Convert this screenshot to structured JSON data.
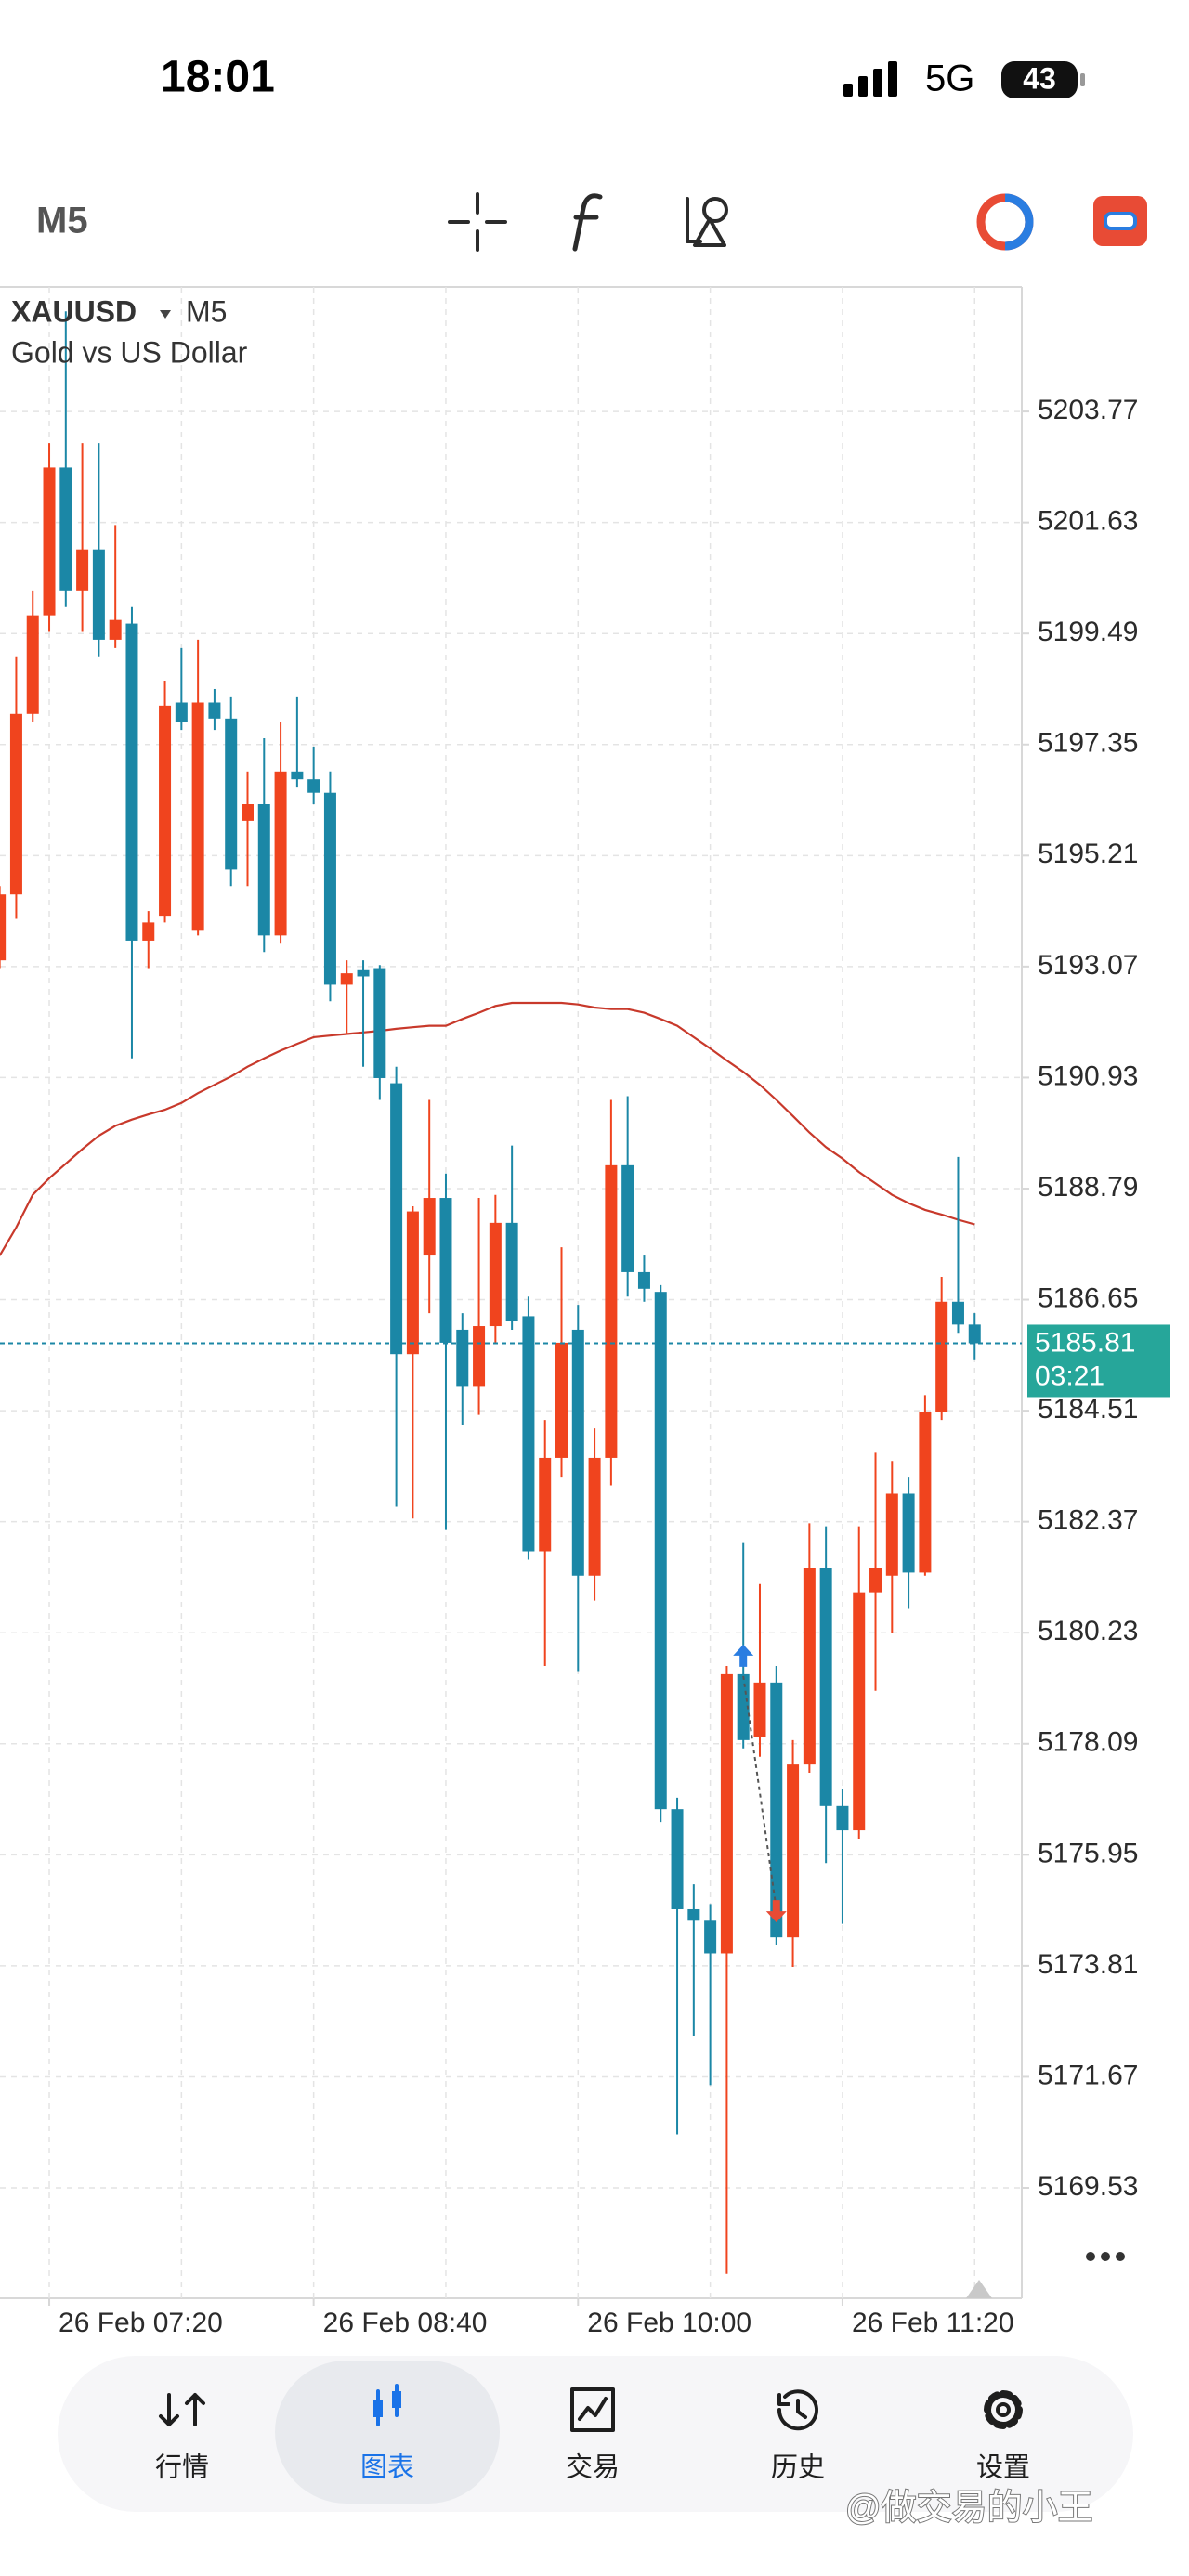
{
  "status_bar": {
    "time": "18:01",
    "network": "5G",
    "battery": "43"
  },
  "toolbar": {
    "timeframe": "M5"
  },
  "chart_data": {
    "type": "candlestick",
    "symbol": "XAUUSD",
    "timeframe": "M5",
    "description": "Gold vs US Dollar",
    "categories": [
      null,
      null,
      null,
      "26 Feb 07:20",
      null,
      null,
      null,
      null,
      null,
      null,
      null,
      null,
      null,
      null,
      null,
      null,
      null,
      null,
      null,
      "26 Feb 08:40",
      null,
      null,
      null,
      null,
      null,
      null,
      null,
      null,
      null,
      null,
      null,
      null,
      null,
      null,
      null,
      "26 Feb 10:00",
      null,
      null,
      null,
      null,
      null,
      null,
      null,
      null,
      null,
      null,
      null,
      null,
      null,
      null,
      null,
      "26 Feb 11:20",
      null,
      null,
      null,
      null,
      null,
      null,
      null,
      null
    ],
    "open": [
      5193.19,
      5194.46,
      5197.94,
      5199.84,
      5202.69,
      5200.32,
      5201.11,
      5199.37,
      5199.68,
      5193.57,
      5194.05,
      5198.16,
      5193.76,
      5198.16,
      5197.85,
      5195.88,
      5196.2,
      5193.67,
      5196.83,
      5196.68,
      5196.42,
      5192.72,
      5193.0,
      5193.04,
      5190.82,
      5185.6,
      5187.5,
      5188.61,
      5186.07,
      5184.97,
      5186.14,
      5188.13,
      5186.33,
      5181.8,
      5183.6,
      5186.07,
      5181.33,
      5183.6,
      5189.24,
      5187.18,
      5186.8,
      5176.83,
      5174.9,
      5174.68,
      5174.05,
      5179.43,
      5178.22,
      5179.27,
      5174.36,
      5177.69,
      5181.48,
      5176.89,
      5176.42,
      5181.01,
      5181.33,
      5182.91,
      5181.39,
      5184.49,
      5186.61,
      5186.17
    ],
    "high": [
      5194.62,
      5199.05,
      5200.32,
      5203.16,
      5205.7,
      5203.16,
      5203.16,
      5201.58,
      5200.0,
      5194.14,
      5198.58,
      5199.21,
      5199.37,
      5198.42,
      5198.26,
      5196.83,
      5197.47,
      5197.78,
      5198.26,
      5197.31,
      5196.83,
      5193.19,
      5193.19,
      5193.1,
      5191.14,
      5188.45,
      5190.5,
      5189.08,
      5186.39,
      5188.61,
      5188.67,
      5189.62,
      5186.71,
      5184.33,
      5187.66,
      5186.55,
      5184.17,
      5190.5,
      5190.57,
      5187.5,
      5186.93,
      5177.05,
      5175.38,
      5175.0,
      5179.59,
      5181.96,
      5181.17,
      5179.59,
      5178.16,
      5182.34,
      5182.28,
      5177.21,
      5182.28,
      5183.7,
      5183.54,
      5183.22,
      5184.81,
      5187.09,
      5189.4,
      5186.39
    ],
    "low": [
      5193.04,
      5193.99,
      5197.78,
      5199.52,
      5200.0,
      5199.52,
      5199.05,
      5199.21,
      5191.3,
      5193.04,
      5193.92,
      5197.63,
      5193.67,
      5197.63,
      5194.62,
      5194.62,
      5193.35,
      5193.51,
      5196.52,
      5196.2,
      5192.4,
      5191.77,
      5191.14,
      5190.5,
      5182.66,
      5182.43,
      5186.39,
      5182.21,
      5184.24,
      5184.43,
      5185.82,
      5186.07,
      5181.64,
      5179.59,
      5183.22,
      5179.49,
      5180.85,
      5183.07,
      5186.71,
      5186.61,
      5176.58,
      5170.56,
      5172.46,
      5171.51,
      5167.87,
      5178.0,
      5177.84,
      5174.21,
      5173.79,
      5177.53,
      5175.79,
      5174.62,
      5176.26,
      5179.11,
      5180.22,
      5180.69,
      5181.33,
      5184.33,
      5186.01,
      5185.5
    ],
    "close": [
      5194.46,
      5197.94,
      5199.84,
      5202.69,
      5200.32,
      5201.11,
      5199.37,
      5199.75,
      5193.57,
      5193.92,
      5198.1,
      5197.78,
      5198.16,
      5197.85,
      5194.94,
      5196.2,
      5193.67,
      5196.83,
      5196.68,
      5196.42,
      5192.72,
      5192.94,
      5192.88,
      5190.92,
      5185.6,
      5188.35,
      5188.61,
      5185.82,
      5184.97,
      5186.14,
      5188.13,
      5186.23,
      5181.8,
      5183.6,
      5185.82,
      5181.33,
      5183.6,
      5189.24,
      5187.18,
      5186.86,
      5176.83,
      5174.9,
      5174.68,
      5174.05,
      5179.43,
      5178.16,
      5179.27,
      5174.36,
      5177.69,
      5181.48,
      5176.89,
      5176.42,
      5181.01,
      5181.48,
      5182.91,
      5181.39,
      5184.49,
      5186.61,
      5186.17,
      5185.81
    ],
    "up_color": "#f0441e",
    "down_color": "#1b87a6",
    "moving_average": {
      "color": "#c8392b",
      "values": [
        5187.5,
        5188.04,
        5188.67,
        5188.99,
        5189.27,
        5189.55,
        5189.81,
        5190.0,
        5190.12,
        5190.22,
        5190.31,
        5190.44,
        5190.63,
        5190.79,
        5190.95,
        5191.14,
        5191.3,
        5191.45,
        5191.58,
        5191.71,
        5191.74,
        5191.77,
        5191.8,
        5191.83,
        5191.87,
        5191.9,
        5191.93,
        5191.93,
        5192.06,
        5192.18,
        5192.31,
        5192.37,
        5192.37,
        5192.37,
        5192.37,
        5192.34,
        5192.28,
        5192.25,
        5192.25,
        5192.18,
        5192.06,
        5191.93,
        5191.71,
        5191.49,
        5191.26,
        5191.04,
        5190.79,
        5190.5,
        5190.19,
        5189.87,
        5189.59,
        5189.37,
        5189.11,
        5188.89,
        5188.67,
        5188.51,
        5188.38,
        5188.29,
        5188.19,
        5188.1
      ]
    },
    "current_price": 5185.81,
    "countdown": "03:21",
    "current_price_color": "#26a69a",
    "ylim": [
      5167.4,
      5206.17
    ],
    "yticks": [
      5203.77,
      5201.63,
      5199.49,
      5197.35,
      5195.21,
      5193.07,
      5190.93,
      5188.79,
      5186.65,
      5184.51,
      5182.37,
      5180.23,
      5178.09,
      5175.95,
      5173.81,
      5171.67,
      5169.53
    ],
    "grid": true
  },
  "nav": {
    "items": [
      "行情",
      "图表",
      "交易",
      "历史",
      "设置"
    ],
    "active": 1,
    "active_color": "#1a73e8"
  },
  "watermark": "@做交易的小王"
}
